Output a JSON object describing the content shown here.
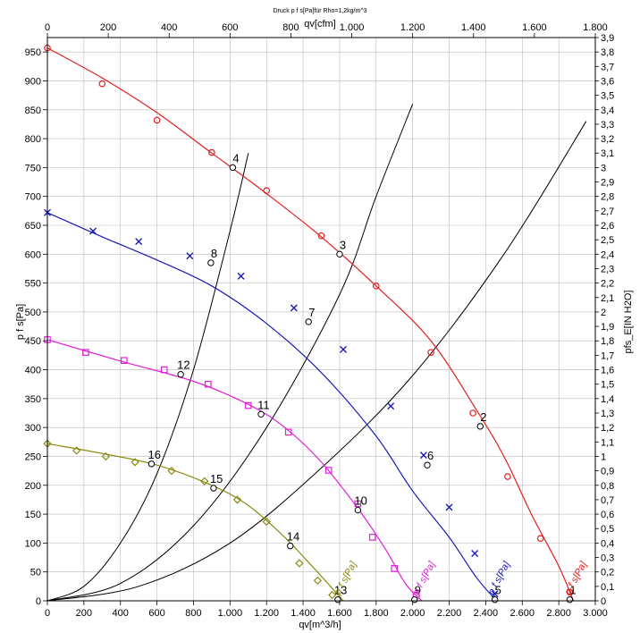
{
  "chart_data": {
    "type": "line",
    "title": "Druck p f s[Pa]für Rho=1,2kg/m^3",
    "xlabel": "qv[m^3/h]",
    "x2label": "qv[cfm]",
    "ylabel": "p f s[Pa]",
    "y2label": "pfs_E[IN H2O]",
    "xlim": [
      0,
      3000
    ],
    "ylim": [
      0,
      975
    ],
    "x2lim": [
      0,
      1800
    ],
    "y2lim": [
      0,
      3.9
    ],
    "grid": true,
    "x_ticks": [
      0,
      200,
      400,
      600,
      800,
      1000,
      1200,
      1400,
      1600,
      1800,
      2000,
      2200,
      2400,
      2600,
      2800,
      3000
    ],
    "x_tick_labels": [
      "0",
      "200",
      "400",
      "600",
      "800",
      "1.000",
      "1.200",
      "1.400",
      "1.600",
      "1.800",
      "2.000",
      "2.200",
      "2.400",
      "2.600",
      "2.800",
      "3.000"
    ],
    "x2_ticks": [
      0,
      200,
      400,
      600,
      800,
      1000,
      1200,
      1400,
      1600,
      1800
    ],
    "x2_tick_labels": [
      "0",
      "200",
      "400",
      "600",
      "800",
      "1.000",
      "1.200",
      "1.400",
      "1.600",
      "1.800"
    ],
    "y_ticks": [
      0,
      50,
      100,
      150,
      200,
      250,
      300,
      350,
      400,
      450,
      500,
      550,
      600,
      650,
      700,
      750,
      800,
      850,
      900,
      950
    ],
    "y_tick_labels": [
      "0",
      "50",
      "100",
      "150",
      "200",
      "250",
      "300",
      "350",
      "400",
      "450",
      "500",
      "550",
      "600",
      "650",
      "700",
      "750",
      "800",
      "850",
      "900",
      "950"
    ],
    "y2_tick_labels": [
      "0",
      "0,1",
      "0,2",
      "0,3",
      "0,4",
      "0,5",
      "0,6",
      "0,7",
      "0,8",
      "0,9",
      "1",
      "1,1",
      "1,2",
      "1,3",
      "1,4",
      "1,5",
      "1,6",
      "1,7",
      "1,8",
      "1,9",
      "2",
      "2,1",
      "2,2",
      "2,3",
      "2,4",
      "2,5",
      "2,6",
      "2,7",
      "2,8",
      "2,9",
      "3",
      "3,1",
      "3,2",
      "3,3",
      "3,4",
      "3,5",
      "3,6",
      "3,7",
      "3,8",
      "3,9"
    ],
    "series": [
      {
        "name": "p f s[Pa]",
        "color": "#e0201e",
        "marker": "circle",
        "x": [
          0,
          300,
          600,
          900,
          1200,
          1500,
          1800,
          2100,
          2350,
          2500,
          2650,
          2800,
          2880
        ],
        "y": [
          957,
          905,
          845,
          775,
          705,
          630,
          545,
          450,
          330,
          250,
          150,
          60,
          0
        ],
        "marker_x": [
          0,
          300,
          600,
          900,
          1200,
          1500,
          1800,
          2100,
          2330,
          2520,
          2700,
          2860
        ],
        "marker_y": [
          957,
          895,
          832,
          776,
          710,
          632,
          545,
          430,
          325,
          215,
          108,
          15
        ]
      },
      {
        "name": "p f s[Pa]",
        "color": "#1a1ab8",
        "marker": "x",
        "x": [
          0,
          300,
          600,
          900,
          1200,
          1500,
          1800,
          2000,
          2200,
          2350,
          2460
        ],
        "y": [
          672,
          630,
          590,
          545,
          480,
          395,
          285,
          190,
          110,
          40,
          0
        ],
        "marker_x": [
          0,
          250,
          500,
          780,
          1060,
          1350,
          1620,
          1880,
          2060,
          2200,
          2340,
          2450
        ],
        "marker_y": [
          672,
          640,
          622,
          597,
          562,
          507,
          435,
          337,
          252,
          162,
          82,
          12
        ]
      },
      {
        "name": "p f s[Pa]",
        "color": "#e020d8",
        "marker": "square",
        "x": [
          0,
          400,
          800,
          1100,
          1300,
          1500,
          1700,
          1850,
          1960,
          2050
        ],
        "y": [
          452,
          415,
          380,
          340,
          300,
          240,
          160,
          90,
          30,
          0
        ],
        "marker_x": [
          0,
          210,
          420,
          640,
          880,
          1100,
          1320,
          1540,
          1700,
          1780,
          1900,
          2020
        ],
        "marker_y": [
          452,
          430,
          416,
          400,
          375,
          338,
          292,
          226,
          168,
          110,
          56,
          10
        ]
      },
      {
        "name": "p f s[Pa]",
        "color": "#8a8a10",
        "marker": "diamond",
        "x": [
          0,
          300,
          600,
          900,
          1100,
          1300,
          1420,
          1550,
          1620
        ],
        "y": [
          272,
          255,
          235,
          200,
          165,
          110,
          70,
          25,
          0
        ],
        "marker_x": [
          0,
          160,
          320,
          480,
          680,
          860,
          1040,
          1200,
          1380,
          1480,
          1560
        ],
        "marker_y": [
          272,
          260,
          250,
          240,
          225,
          207,
          175,
          137,
          65,
          35,
          10
        ]
      }
    ],
    "system_curves": [
      {
        "x": [
          0,
          200,
          400,
          600,
          800,
          1000,
          1100
        ],
        "y": [
          0,
          25,
          100,
          220,
          400,
          640,
          775
        ]
      },
      {
        "x": [
          0,
          400,
          800,
          1200,
          1600,
          1800,
          2000
        ],
        "y": [
          0,
          30,
          130,
          300,
          530,
          700,
          860
        ]
      },
      {
        "x": [
          0,
          500,
          1000,
          1500,
          2000,
          2500,
          2950
        ],
        "y": [
          0,
          25,
          100,
          230,
          390,
          600,
          830
        ]
      }
    ],
    "points": [
      {
        "label": "1",
        "x": 2860,
        "y": 2
      },
      {
        "label": "2",
        "x": 2370,
        "y": 302
      },
      {
        "label": "3",
        "x": 1600,
        "y": 600
      },
      {
        "label": "4",
        "x": 1015,
        "y": 750
      },
      {
        "label": "5",
        "x": 2450,
        "y": 2
      },
      {
        "label": "6",
        "x": 2080,
        "y": 235
      },
      {
        "label": "7",
        "x": 1430,
        "y": 483
      },
      {
        "label": "8",
        "x": 895,
        "y": 585
      },
      {
        "label": "9",
        "x": 2010,
        "y": 2
      },
      {
        "label": "10",
        "x": 1700,
        "y": 157
      },
      {
        "label": "11",
        "x": 1170,
        "y": 323
      },
      {
        "label": "12",
        "x": 730,
        "y": 392
      },
      {
        "label": "13",
        "x": 1590,
        "y": 2
      },
      {
        "label": "14",
        "x": 1330,
        "y": 95
      },
      {
        "label": "15",
        "x": 910,
        "y": 195
      },
      {
        "label": "16",
        "x": 570,
        "y": 237
      }
    ]
  }
}
